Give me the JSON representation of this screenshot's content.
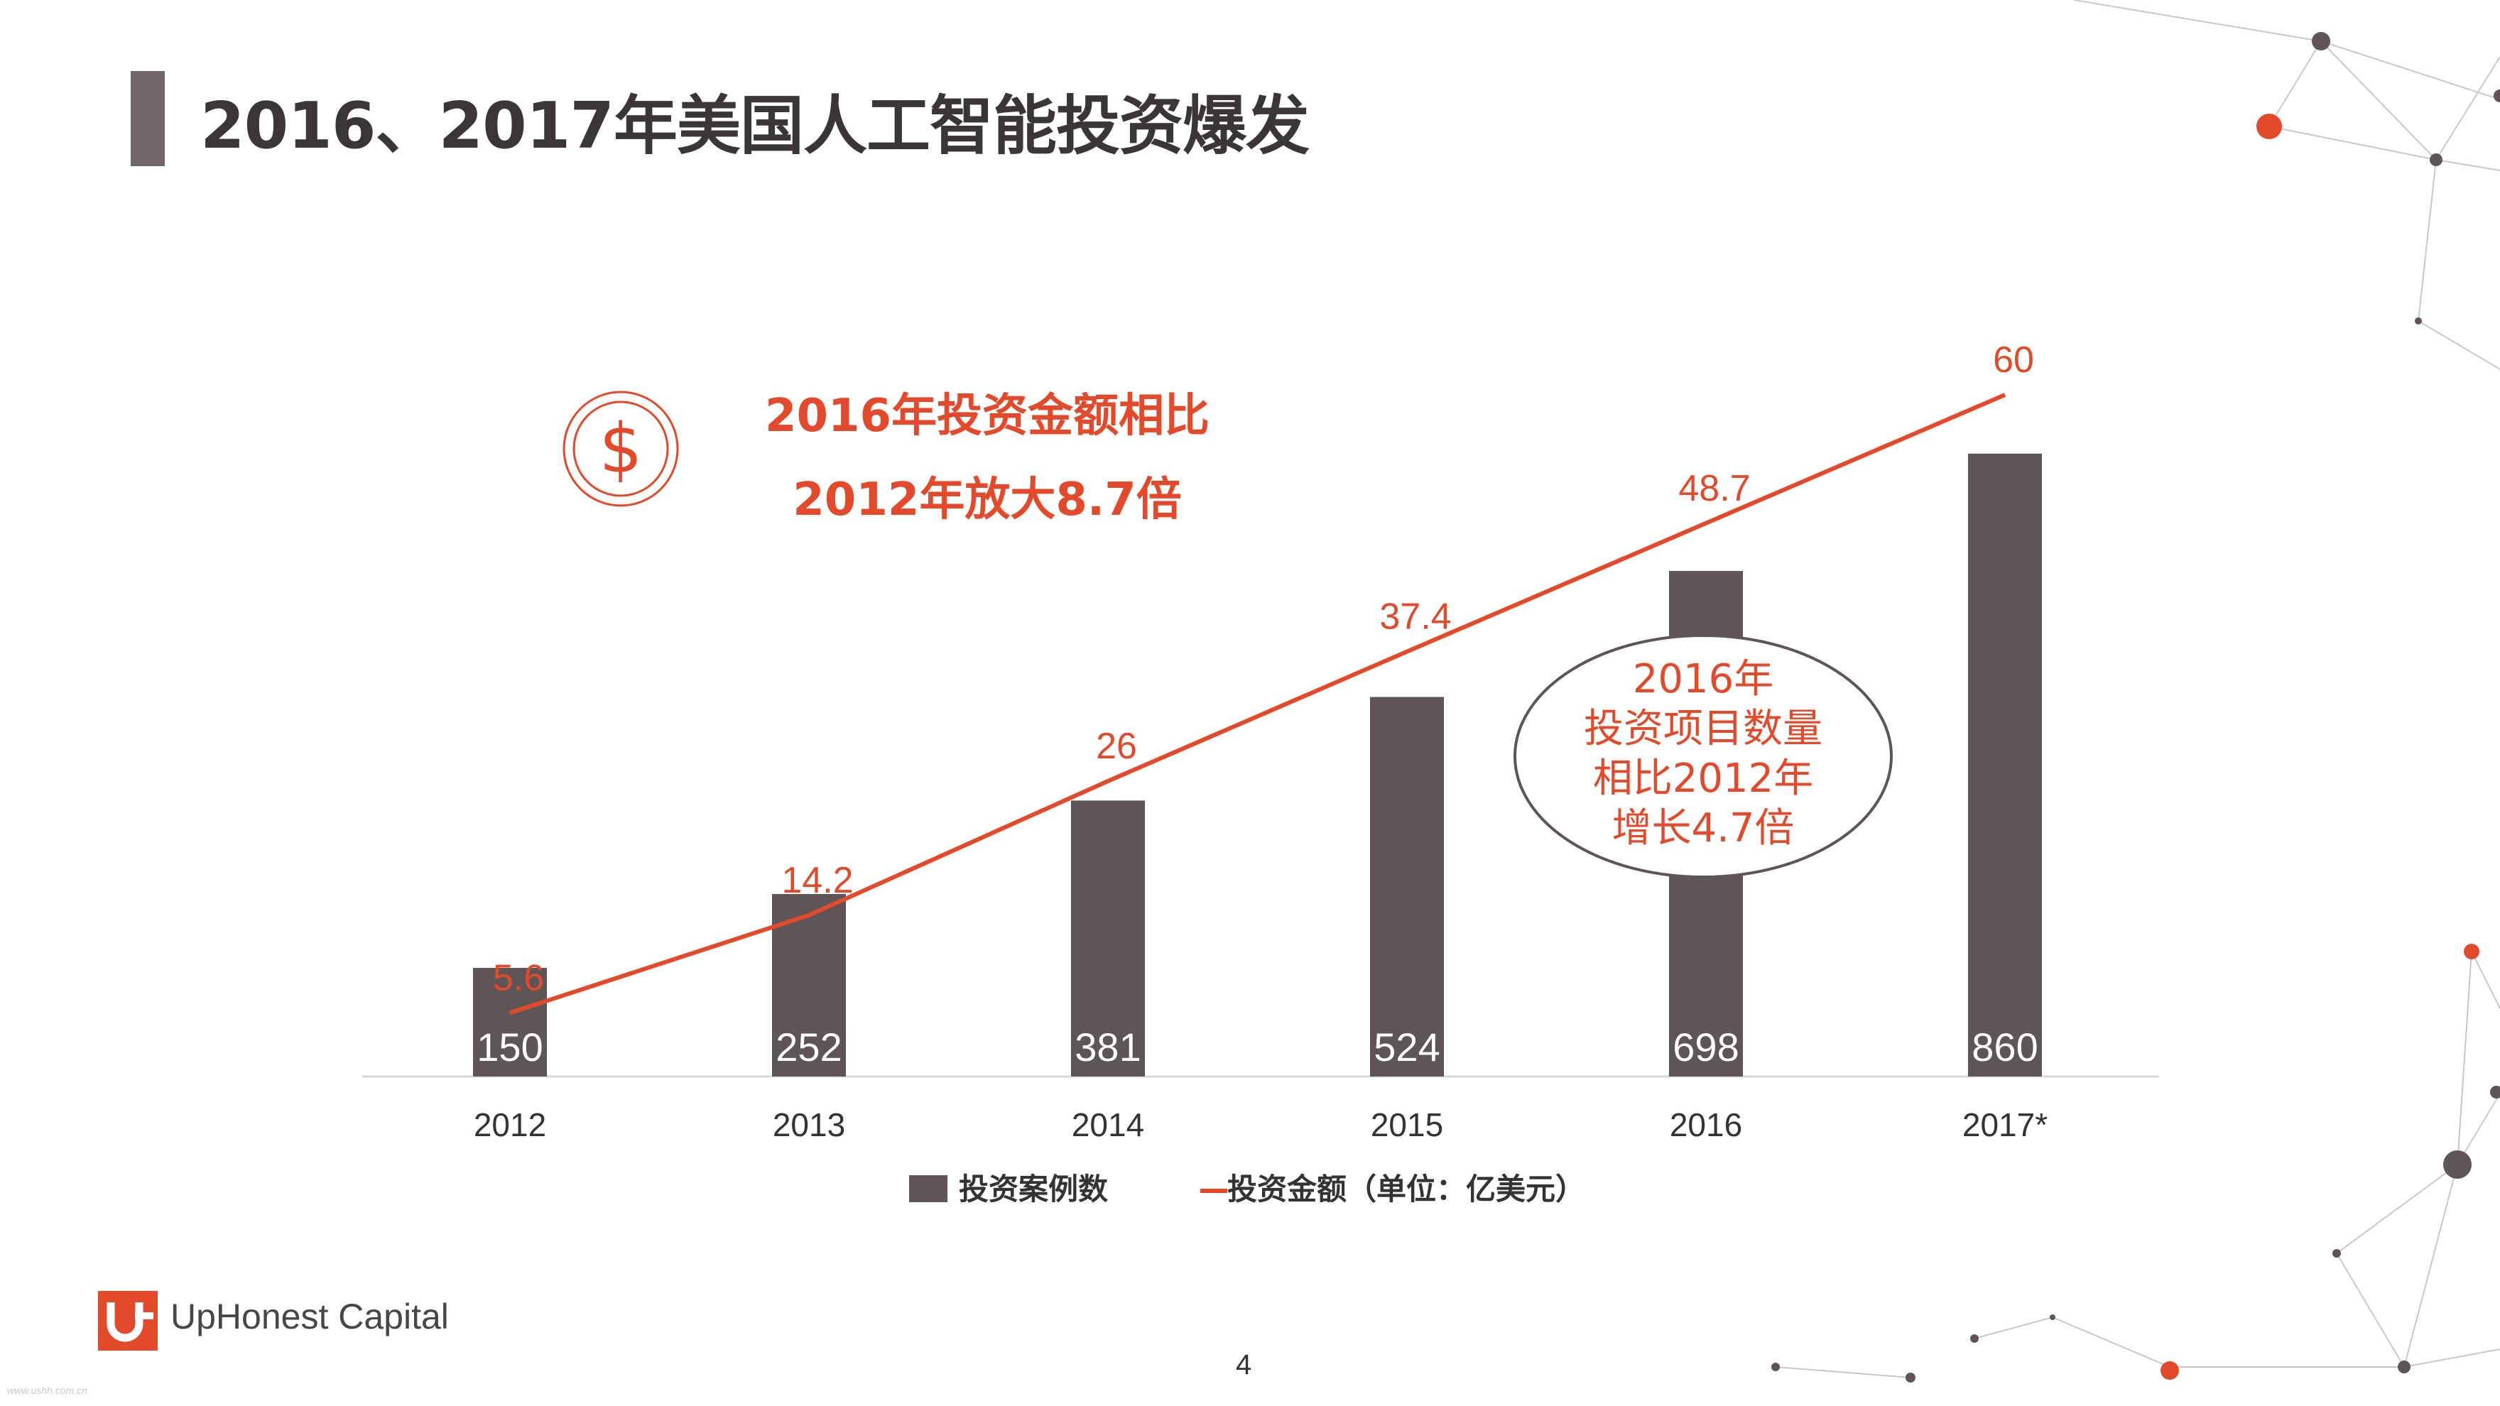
{
  "title": "2016、2017年美国人工智能投资爆发",
  "highlight": {
    "line1": "2016年投资金额相比",
    "line2": "2012年放大8.7倍",
    "icon": "dollar-circle-icon"
  },
  "callout": {
    "lines": [
      "2016年",
      "投资项目数量",
      "相比2012年",
      "增长4.7倍"
    ]
  },
  "colors": {
    "bar": "#5d5556",
    "line": "#e24a2b",
    "text": "#333333",
    "accent": "#e24a2b"
  },
  "chart_data": {
    "type": "bar",
    "categories": [
      "2012",
      "2013",
      "2014",
      "2015",
      "2016",
      "2017*"
    ],
    "series": [
      {
        "name": "投资案例数",
        "type": "bar",
        "values": [
          150,
          252,
          381,
          524,
          698,
          860
        ]
      },
      {
        "name": "投资金额（单位：亿美元）",
        "type": "line",
        "values": [
          5.6,
          14.2,
          26,
          37.4,
          48.7,
          60
        ]
      }
    ],
    "bar_labels": [
      "150",
      "252",
      "381",
      "524",
      "698",
      "860"
    ],
    "line_labels": [
      "5.6",
      "14.2",
      "26",
      "37.4",
      "48.7",
      "60"
    ],
    "legend": [
      "投资案例数",
      "投资金额（单位：亿美元）"
    ],
    "legend_position": "bottom",
    "bar_ylim": [
      0,
      1000
    ],
    "line_ylim": [
      0,
      70
    ],
    "grid": false
  },
  "footer": {
    "logo_text": "UpHonest Capital",
    "page": "4",
    "watermark": "www.ushh.com.cn"
  }
}
